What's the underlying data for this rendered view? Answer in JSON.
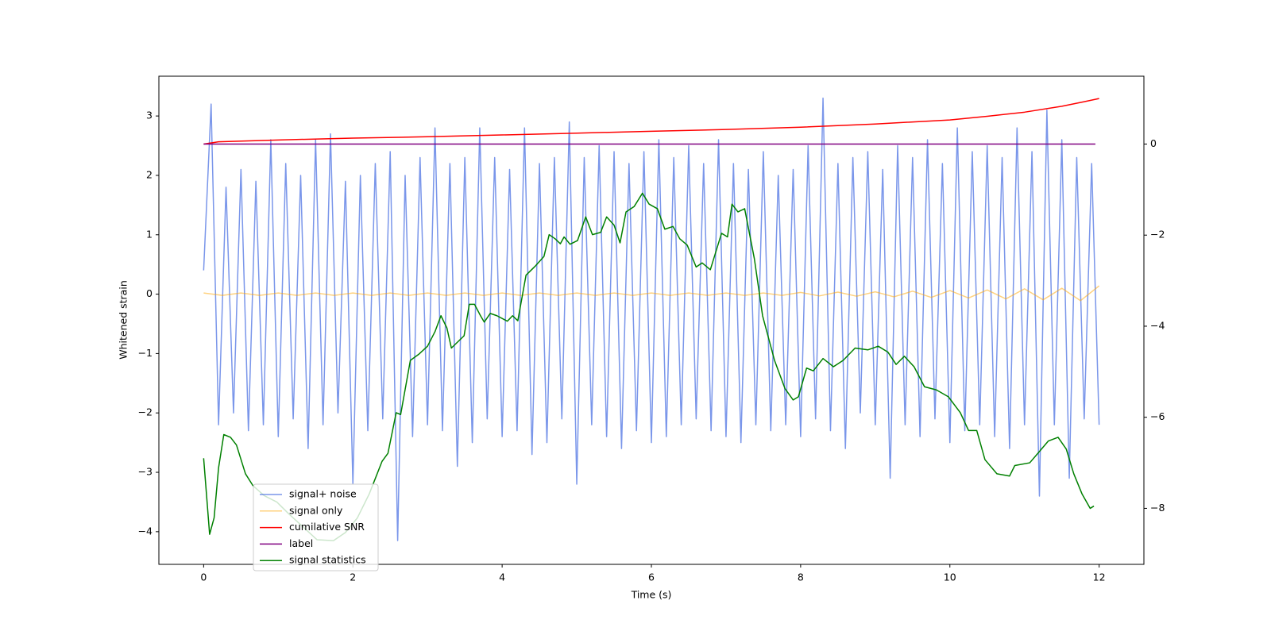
{
  "chart_data": {
    "type": "line",
    "xlabel": "Time (s)",
    "ylabel": "Whitened strain",
    "xlim": [
      -0.6,
      12.6
    ],
    "xticks": [
      0,
      2,
      4,
      6,
      8,
      10,
      12
    ],
    "ylim": [
      -4.55,
      3.67
    ],
    "yticks": [
      {
        "value": -4,
        "label": "−4"
      },
      {
        "value": -3,
        "label": "−3"
      },
      {
        "value": -2,
        "label": "−2"
      },
      {
        "value": -1,
        "label": "−1"
      },
      0,
      1,
      2,
      3
    ],
    "y2lim": [
      -9.23,
      1.49
    ],
    "y2ticks": [
      {
        "value": -8,
        "label": "−8"
      },
      {
        "value": -6,
        "label": "−6"
      },
      {
        "value": -4,
        "label": "−4"
      },
      {
        "value": -2,
        "label": "−2"
      },
      0
    ],
    "series": [
      {
        "name": "signal+ noise",
        "color": "#4169e1",
        "alpha": 0.7,
        "x": [
          0,
          0.1,
          0.2,
          0.3,
          0.4,
          0.5,
          0.6,
          0.7,
          0.8,
          0.9,
          1,
          1.1,
          1.2,
          1.3,
          1.4,
          1.5,
          1.6,
          1.7,
          1.8,
          1.9,
          2,
          2.1,
          2.2,
          2.3,
          2.4,
          2.5,
          2.6,
          2.7,
          2.8,
          2.9,
          3,
          3.1,
          3.2,
          3.3,
          3.4,
          3.5,
          3.6,
          3.7,
          3.8,
          3.9,
          4,
          4.1,
          4.2,
          4.3,
          4.4,
          4.5,
          4.6,
          4.7,
          4.8,
          4.9,
          5,
          5.1,
          5.2,
          5.3,
          5.4,
          5.5,
          5.6,
          5.7,
          5.8,
          5.9,
          6,
          6.1,
          6.2,
          6.3,
          6.4,
          6.5,
          6.6,
          6.7,
          6.8,
          6.9,
          7,
          7.1,
          7.2,
          7.3,
          7.4,
          7.5,
          7.6,
          7.7,
          7.8,
          7.9,
          8,
          8.1,
          8.2,
          8.3,
          8.4,
          8.5,
          8.6,
          8.7,
          8.8,
          8.9,
          9,
          9.1,
          9.2,
          9.3,
          9.4,
          9.5,
          9.6,
          9.7,
          9.8,
          9.9,
          10,
          10.1,
          10.2,
          10.3,
          10.4,
          10.5,
          10.6,
          10.7,
          10.8,
          10.9,
          11,
          11.1,
          11.2,
          11.3,
          11.4,
          11.5,
          11.6,
          11.7,
          11.8,
          11.9,
          12
        ],
        "values": [
          0.4,
          3.2,
          -2.2,
          1.8,
          -2.0,
          2.1,
          -2.3,
          1.9,
          -2.2,
          2.6,
          -2.4,
          2.2,
          -2.1,
          2.0,
          -2.6,
          2.6,
          -2.2,
          2.7,
          -2.0,
          1.9,
          -3.2,
          2.0,
          -2.3,
          2.2,
          -2.1,
          2.4,
          -4.15,
          2.0,
          -2.4,
          2.3,
          -2.2,
          2.8,
          -2.3,
          2.2,
          -2.9,
          2.3,
          -2.5,
          2.8,
          -2.1,
          2.3,
          -2.4,
          2.1,
          -2.3,
          2.8,
          -2.7,
          2.2,
          -2.5,
          2.3,
          -2.1,
          2.9,
          -3.2,
          2.3,
          -2.2,
          2.5,
          -2.4,
          2.4,
          -2.6,
          2.2,
          -2.3,
          2.4,
          -2.5,
          2.6,
          -2.4,
          2.3,
          -2.2,
          2.5,
          -2.1,
          2.2,
          -2.3,
          2.6,
          -2.4,
          2.2,
          -2.5,
          2.1,
          -2.2,
          2.4,
          -2.3,
          2.0,
          -2.2,
          2.1,
          -2.4,
          2.5,
          -2.1,
          3.3,
          -2.3,
          2.2,
          -2.6,
          2.3,
          -2.0,
          2.4,
          -2.2,
          2.1,
          -3.1,
          2.5,
          -2.2,
          2.3,
          -2.4,
          2.6,
          -2.1,
          2.2,
          -2.5,
          2.8,
          -2.3,
          2.4,
          -2.2,
          2.5,
          -2.4,
          2.3,
          -2.6,
          2.8,
          -2.2,
          2.4,
          -3.4,
          3.1,
          -2.2,
          2.6,
          -3.1,
          2.3,
          -2.1,
          2.2,
          -2.2
        ]
      },
      {
        "name": "signal only",
        "color": "#ffa500",
        "alpha": 0.5,
        "x": [
          0,
          0.25,
          0.5,
          0.75,
          1,
          1.25,
          1.5,
          1.75,
          2,
          2.25,
          2.5,
          2.75,
          3,
          3.25,
          3.5,
          3.75,
          4,
          4.25,
          4.5,
          4.75,
          5,
          5.25,
          5.5,
          5.75,
          6,
          6.25,
          6.5,
          6.75,
          7,
          7.25,
          7.5,
          7.75,
          8,
          8.25,
          8.5,
          8.75,
          9,
          9.25,
          9.5,
          9.75,
          10,
          10.25,
          10.5,
          10.75,
          11,
          11.25,
          11.5,
          11.75,
          12
        ],
        "values": [
          0.02,
          -0.02,
          0.02,
          -0.02,
          0.02,
          -0.02,
          0.02,
          -0.02,
          0.02,
          -0.02,
          0.02,
          -0.02,
          0.02,
          -0.02,
          0.02,
          -0.02,
          0.02,
          -0.02,
          0.02,
          -0.02,
          0.02,
          -0.02,
          0.02,
          -0.02,
          0.02,
          -0.02,
          0.02,
          -0.02,
          0.02,
          -0.02,
          0.02,
          -0.02,
          0.03,
          -0.03,
          0.035,
          -0.035,
          0.04,
          -0.045,
          0.05,
          -0.055,
          0.06,
          -0.065,
          0.07,
          -0.08,
          0.09,
          -0.095,
          0.1,
          -0.11,
          0.14
        ]
      },
      {
        "name": "cumilative SNR",
        "color": "#ff0000",
        "axis": "y2",
        "x": [
          0,
          0.2,
          1,
          2,
          3,
          4,
          5,
          6,
          7,
          8,
          9,
          10,
          10.5,
          11,
          11.5,
          11.8,
          12
        ],
        "values": [
          0,
          0.05,
          0.09,
          0.13,
          0.16,
          0.2,
          0.24,
          0.28,
          0.32,
          0.37,
          0.44,
          0.53,
          0.61,
          0.7,
          0.83,
          0.93,
          1.0
        ]
      },
      {
        "name": "label",
        "color": "#800080",
        "axis": "y2",
        "x": [
          0,
          11.95
        ],
        "values": [
          0,
          0
        ]
      },
      {
        "name": "signal statistics",
        "color": "#008000",
        "axis": "y2",
        "x": [
          0,
          0.08,
          0.14,
          0.2,
          0.27,
          0.36,
          0.44,
          0.56,
          0.66,
          0.81,
          0.98,
          1.14,
          1.3,
          1.52,
          1.74,
          1.9,
          2.06,
          2.22,
          2.39,
          2.47,
          2.58,
          2.64,
          2.77,
          2.88,
          3.0,
          3.1,
          3.18,
          3.26,
          3.32,
          3.49,
          3.56,
          3.63,
          3.71,
          3.76,
          3.84,
          3.93,
          4.07,
          4.14,
          4.21,
          4.32,
          4.45,
          4.56,
          4.63,
          4.71,
          4.78,
          4.83,
          4.91,
          5.01,
          5.12,
          5.21,
          5.32,
          5.4,
          5.5,
          5.58,
          5.66,
          5.77,
          5.88,
          5.97,
          6.08,
          6.18,
          6.29,
          6.38,
          6.48,
          6.6,
          6.68,
          6.79,
          6.94,
          7.02,
          7.08,
          7.16,
          7.25,
          7.38,
          7.49,
          7.65,
          7.79,
          7.9,
          7.97,
          8.08,
          8.17,
          8.3,
          8.44,
          8.57,
          8.73,
          8.9,
          9.04,
          9.17,
          9.28,
          9.39,
          9.52,
          9.66,
          9.82,
          9.98,
          10.14,
          10.25,
          10.36,
          10.47,
          10.63,
          10.8,
          10.87,
          11.07,
          11.18,
          11.32,
          11.45,
          11.56,
          11.66,
          11.77,
          11.88,
          11.93
        ],
        "values": [
          -6.9,
          -8.57,
          -8.21,
          -7.11,
          -6.38,
          -6.44,
          -6.61,
          -7.24,
          -7.5,
          -7.72,
          -7.86,
          -8.12,
          -8.36,
          -8.69,
          -8.71,
          -8.53,
          -8.21,
          -7.68,
          -6.97,
          -6.79,
          -5.9,
          -5.94,
          -4.75,
          -4.62,
          -4.44,
          -4.12,
          -3.77,
          -4.04,
          -4.48,
          -4.21,
          -3.52,
          -3.52,
          -3.77,
          -3.91,
          -3.72,
          -3.77,
          -3.89,
          -3.77,
          -3.88,
          -2.88,
          -2.67,
          -2.47,
          -1.99,
          -2.08,
          -2.19,
          -2.04,
          -2.2,
          -2.12,
          -1.6,
          -1.99,
          -1.94,
          -1.6,
          -1.78,
          -2.17,
          -1.49,
          -1.37,
          -1.08,
          -1.32,
          -1.42,
          -1.87,
          -1.81,
          -2.08,
          -2.22,
          -2.7,
          -2.61,
          -2.76,
          -1.96,
          -2.04,
          -1.32,
          -1.49,
          -1.42,
          -2.52,
          -3.77,
          -4.75,
          -5.37,
          -5.62,
          -5.55,
          -4.92,
          -4.98,
          -4.71,
          -4.89,
          -4.75,
          -4.48,
          -4.52,
          -4.44,
          -4.57,
          -4.84,
          -4.66,
          -4.89,
          -5.33,
          -5.4,
          -5.55,
          -5.9,
          -6.29,
          -6.29,
          -6.93,
          -7.24,
          -7.29,
          -7.06,
          -7.0,
          -6.79,
          -6.52,
          -6.44,
          -6.7,
          -7.24,
          -7.68,
          -8.0,
          -7.95
        ]
      }
    ]
  }
}
